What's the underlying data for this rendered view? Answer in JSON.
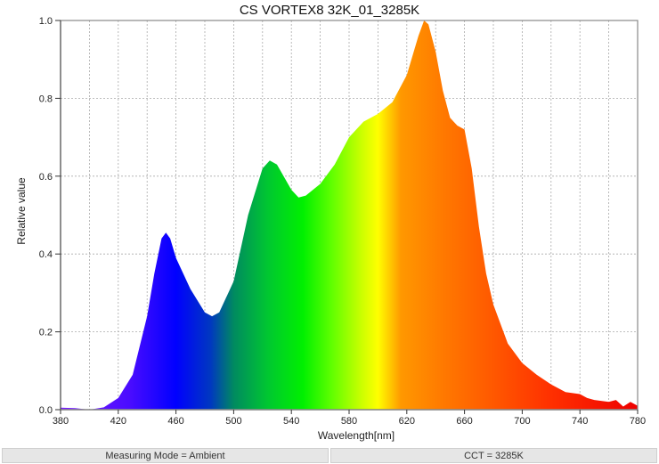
{
  "header": {
    "title": "CS VORTEX8 32K_01_3285K"
  },
  "axes": {
    "xlabel": "Wavelength[nm]",
    "ylabel": "Relative value"
  },
  "footer": {
    "measuring_mode": "Measuring Mode = Ambient",
    "cct": "CCT = 3285K"
  },
  "chart_data": {
    "type": "area",
    "title": "CS VORTEX8 32K_01_3285K",
    "xlabel": "Wavelength[nm]",
    "ylabel": "Relative value",
    "xlim": [
      380,
      780
    ],
    "ylim": [
      0,
      1.0
    ],
    "xticks": [
      380,
      420,
      460,
      500,
      540,
      580,
      620,
      660,
      700,
      740,
      780
    ],
    "yticks": [
      0.0,
      0.2,
      0.4,
      0.6,
      0.8,
      1.0
    ],
    "grid": true,
    "fill": "spectral gradient (violet→blue→green→yellow→orange→red)",
    "x": [
      380,
      390,
      400,
      410,
      420,
      430,
      440,
      445,
      450,
      453,
      456,
      460,
      470,
      480,
      485,
      490,
      500,
      510,
      520,
      525,
      530,
      540,
      545,
      550,
      560,
      570,
      580,
      590,
      600,
      610,
      620,
      628,
      632,
      635,
      640,
      645,
      650,
      655,
      660,
      665,
      670,
      675,
      680,
      690,
      700,
      710,
      720,
      730,
      740,
      745,
      750,
      760,
      765,
      770,
      775,
      780
    ],
    "values": [
      0.005,
      0.004,
      0.0,
      0.006,
      0.03,
      0.09,
      0.24,
      0.35,
      0.44,
      0.455,
      0.44,
      0.39,
      0.31,
      0.25,
      0.24,
      0.25,
      0.33,
      0.5,
      0.62,
      0.64,
      0.63,
      0.565,
      0.545,
      0.55,
      0.58,
      0.63,
      0.7,
      0.74,
      0.76,
      0.79,
      0.86,
      0.96,
      1.0,
      0.99,
      0.92,
      0.82,
      0.75,
      0.73,
      0.72,
      0.62,
      0.47,
      0.35,
      0.27,
      0.17,
      0.12,
      0.09,
      0.065,
      0.045,
      0.04,
      0.03,
      0.025,
      0.02,
      0.025,
      0.008,
      0.02,
      0.01
    ]
  }
}
